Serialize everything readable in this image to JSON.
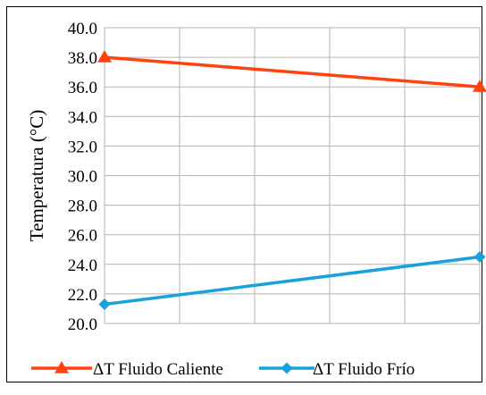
{
  "chart_data": {
    "type": "line",
    "title": "",
    "xlabel": "",
    "ylabel": "Temperatura (°C)",
    "ylim": [
      20,
      40
    ],
    "yticks": [
      "20.0",
      "22.0",
      "24.0",
      "26.0",
      "28.0",
      "30.0",
      "32.0",
      "34.0",
      "36.0",
      "38.0",
      "40.0"
    ],
    "x_points": 2,
    "x_grid_divisions": 5,
    "grid": true,
    "legend_position": "bottom",
    "series": [
      {
        "name": "ΔT Fluido Caliente",
        "values": [
          38.0,
          36.0
        ],
        "color": "#ff420e",
        "marker": "triangle"
      },
      {
        "name": "ΔT Fluido Frío",
        "values": [
          21.3,
          24.5
        ],
        "color": "#1aa1d9",
        "marker": "diamond"
      }
    ]
  }
}
